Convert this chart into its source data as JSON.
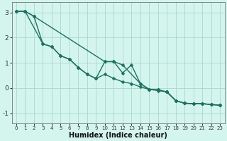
{
  "xlabel": "Humidex (Indice chaleur)",
  "bg_color": "#d4f5ee",
  "grid_color": "#a8d8cc",
  "line_color": "#1e7060",
  "xlim": [
    -0.5,
    23.5
  ],
  "ylim": [
    -1.4,
    3.4
  ],
  "xticks": [
    0,
    1,
    2,
    3,
    4,
    5,
    6,
    7,
    8,
    9,
    10,
    11,
    12,
    13,
    14,
    15,
    16,
    17,
    18,
    19,
    20,
    21,
    22,
    23
  ],
  "yticks": [
    -1,
    0,
    1,
    2,
    3
  ],
  "line1_x": [
    0,
    1,
    2,
    10,
    11,
    12,
    13,
    14,
    15,
    16,
    17,
    18,
    19,
    20,
    21,
    22,
    23
  ],
  "line1_y": [
    3.05,
    3.05,
    2.85,
    1.05,
    1.05,
    0.6,
    0.92,
    0.18,
    -0.05,
    -0.07,
    -0.15,
    -0.5,
    -0.6,
    -0.62,
    -0.62,
    -0.65,
    -0.68
  ],
  "line2_x": [
    0,
    1,
    2,
    3,
    4,
    5,
    6,
    7,
    8,
    9,
    10,
    11,
    12,
    13,
    14,
    15,
    16,
    17,
    18,
    19,
    20,
    21,
    22,
    23
  ],
  "line2_y": [
    3.05,
    3.05,
    2.85,
    1.75,
    1.65,
    1.28,
    1.15,
    0.82,
    0.55,
    0.38,
    0.55,
    0.38,
    0.25,
    0.18,
    0.05,
    -0.05,
    -0.1,
    -0.15,
    -0.5,
    -0.6,
    -0.62,
    -0.62,
    -0.65,
    -0.68
  ],
  "line3_x": [
    0,
    1,
    3,
    4,
    5,
    6,
    7,
    8,
    9,
    10,
    11,
    12,
    14,
    15,
    16,
    17,
    18,
    19,
    20,
    21,
    22,
    23
  ],
  "line3_y": [
    3.05,
    3.05,
    1.75,
    1.65,
    1.28,
    1.15,
    0.82,
    0.55,
    0.38,
    1.05,
    1.05,
    0.92,
    0.18,
    -0.05,
    -0.07,
    -0.15,
    -0.5,
    -0.6,
    -0.62,
    -0.62,
    -0.65,
    -0.68
  ],
  "marker": "D",
  "marker_size": 2.5,
  "line_width": 1.0,
  "tick_fontsize": 5.5,
  "xlabel_fontsize": 7
}
